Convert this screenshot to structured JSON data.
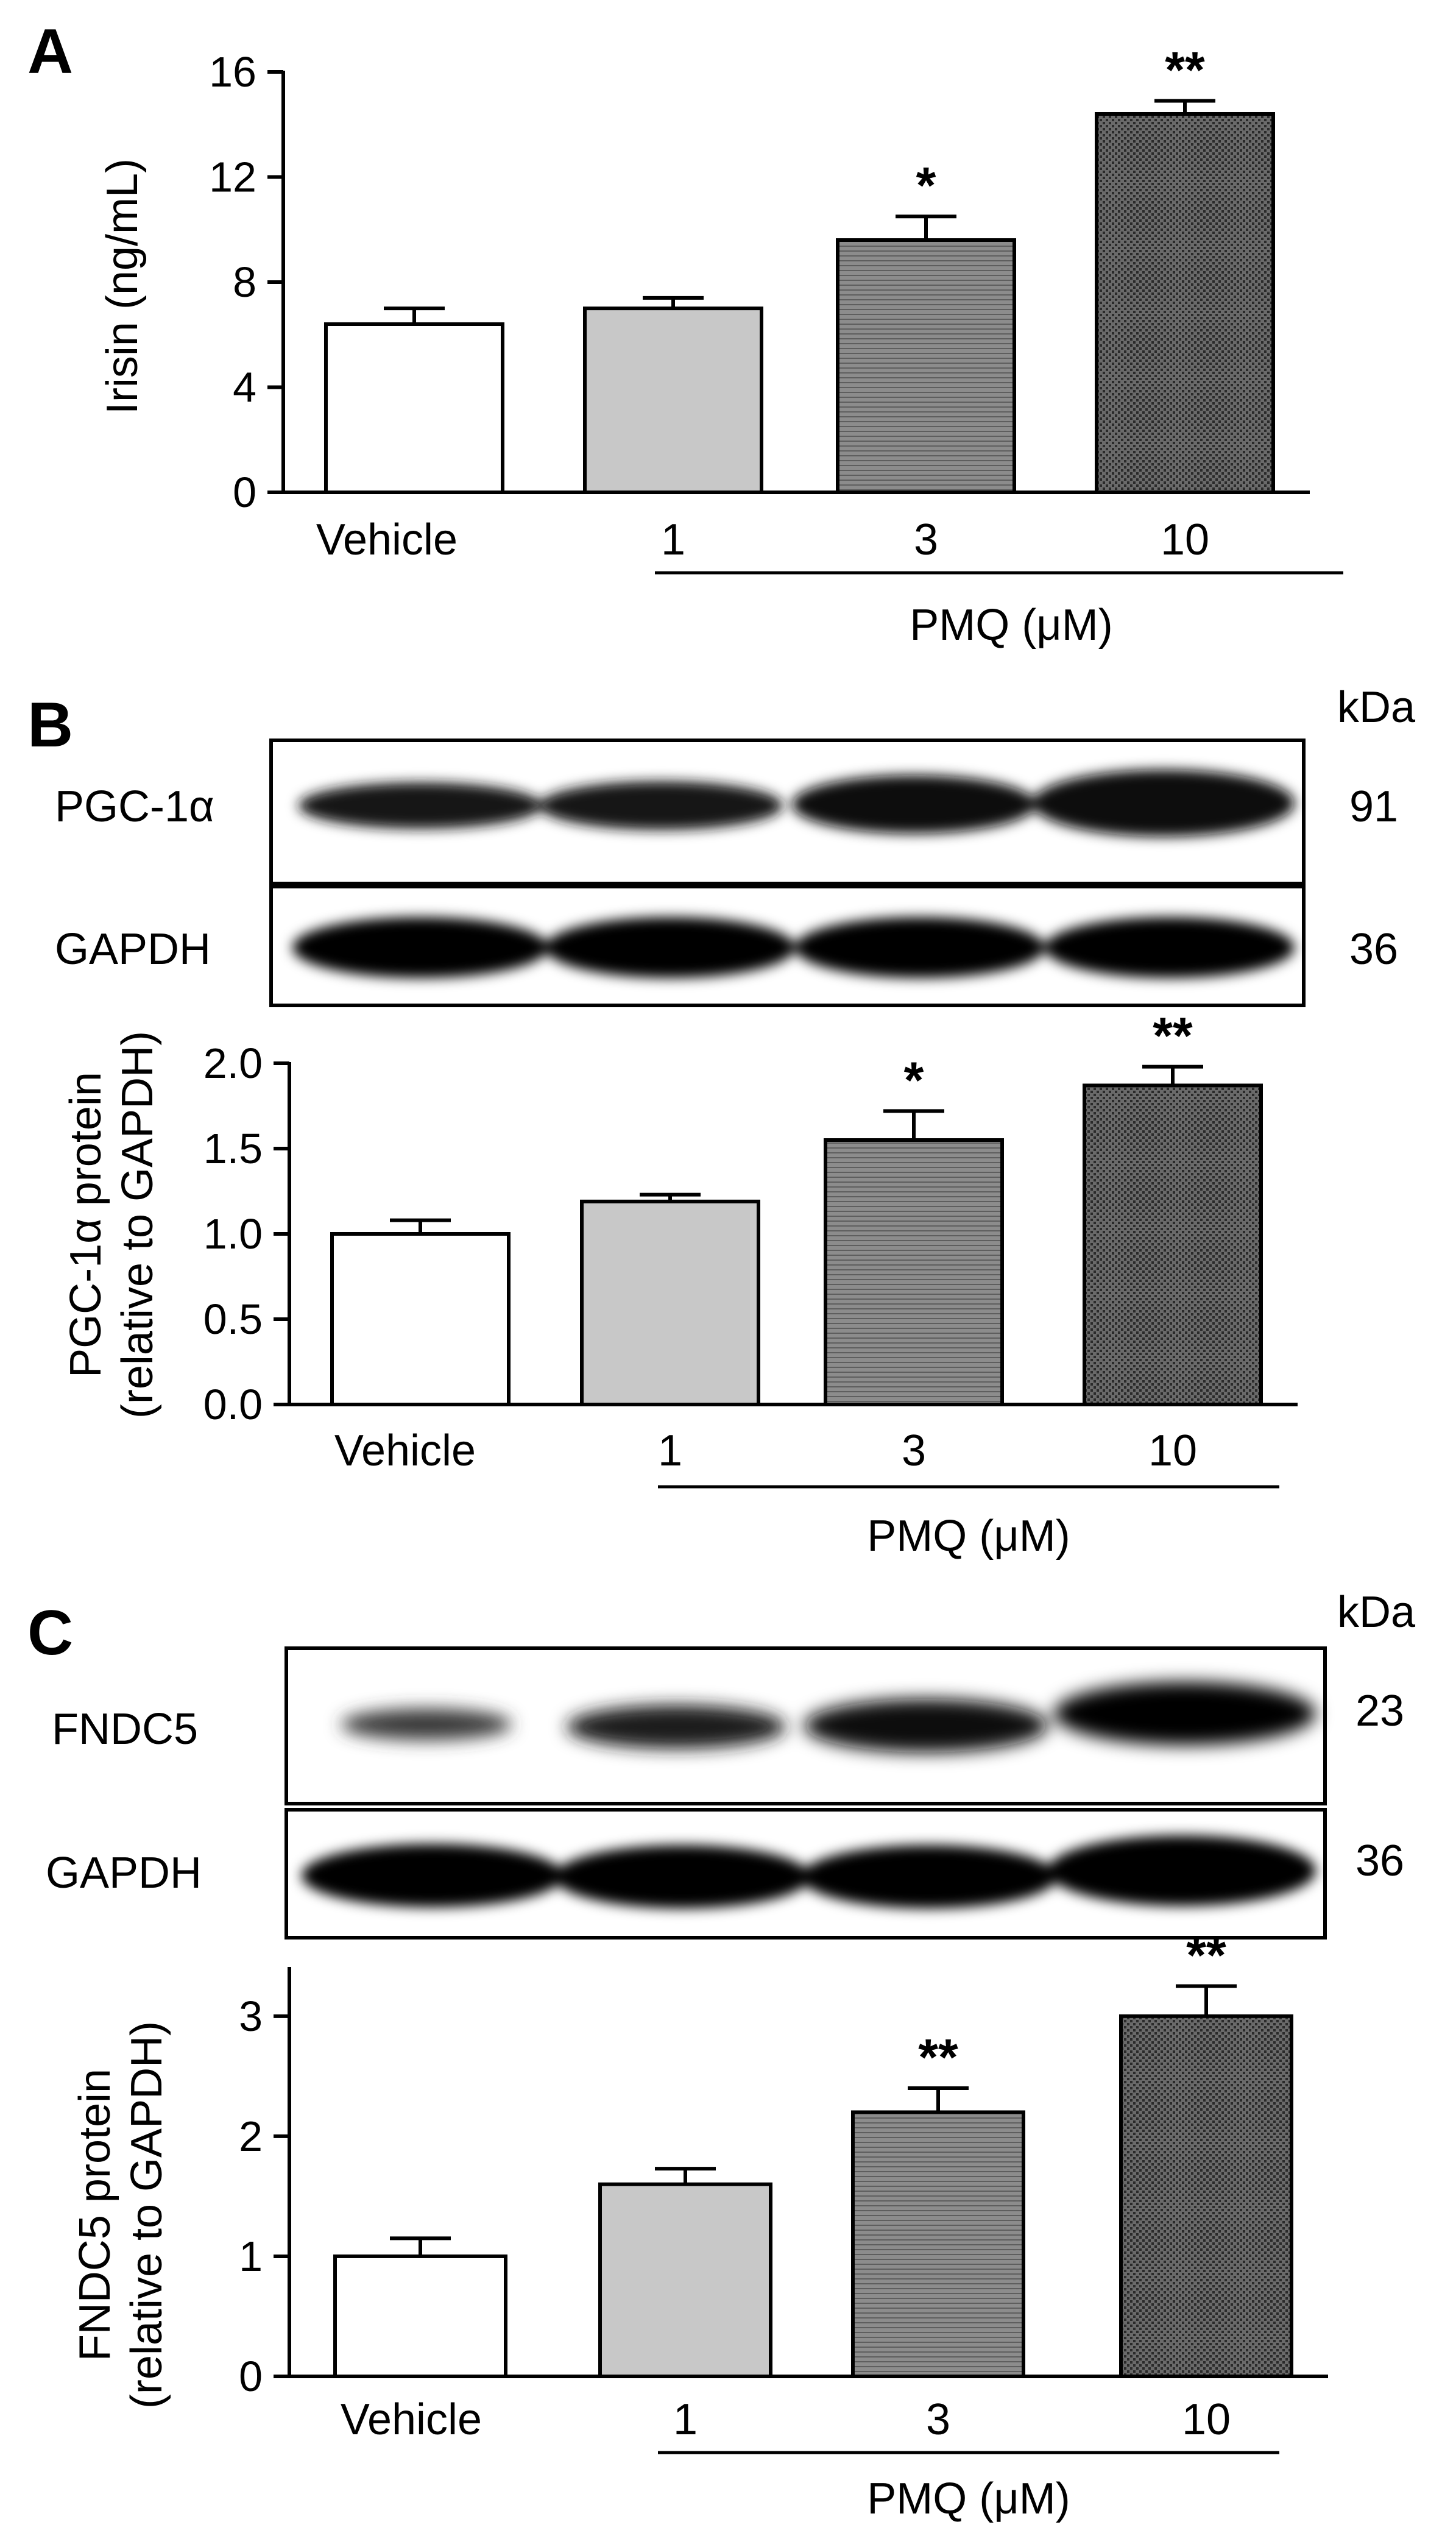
{
  "colors": {
    "vehicle_fill": "#ffffff",
    "pmq1_fill": "#c8c8c8",
    "pmq3_fill": "#8c8c8c",
    "pmq10_fill": "#5a5a5a",
    "stroke": "#000000"
  },
  "blots": {
    "B": {
      "unit_label": "kDa",
      "rows": [
        {
          "label": "PGC-1α",
          "kda": "91"
        },
        {
          "label": "GAPDH",
          "kda": "36"
        }
      ]
    },
    "C": {
      "unit_label": "kDa",
      "rows": [
        {
          "label": "FNDC5",
          "kda": "23"
        },
        {
          "label": "GAPDH",
          "kda": "36"
        }
      ]
    }
  },
  "chart_data": [
    {
      "panel": "A",
      "type": "bar",
      "categories": [
        "Vehicle",
        "1",
        "3",
        "10"
      ],
      "group_label": "PMQ (μM)",
      "values": [
        6.4,
        7.0,
        9.6,
        14.4
      ],
      "errors": [
        0.6,
        0.4,
        0.9,
        0.5
      ],
      "significance": [
        "",
        "",
        "*",
        "**"
      ],
      "ylabel": "Irisin (ng/mL)",
      "ylim": [
        0,
        16
      ],
      "yticks": [
        "0",
        "4",
        "8",
        "12",
        "16"
      ],
      "xlabel": ""
    },
    {
      "panel": "B",
      "type": "bar",
      "categories": [
        "Vehicle",
        "1",
        "3",
        "10"
      ],
      "group_label": "PMQ (μM)",
      "values": [
        1.0,
        1.19,
        1.55,
        1.87
      ],
      "errors": [
        0.08,
        0.04,
        0.17,
        0.11
      ],
      "significance": [
        "",
        "",
        "*",
        "**"
      ],
      "ylabel": "PGC-1α protein",
      "ylabel2": "(relative to GAPDH)",
      "ylim": [
        0,
        2.0
      ],
      "yticks": [
        "0.0",
        "0.5",
        "1.0",
        "1.5",
        "2.0"
      ],
      "xlabel": ""
    },
    {
      "panel": "C",
      "type": "bar",
      "categories": [
        "Vehicle",
        "1",
        "3",
        "10"
      ],
      "group_label": "PMQ (μM)",
      "values": [
        1.0,
        1.6,
        2.2,
        3.0
      ],
      "errors": [
        0.15,
        0.13,
        0.2,
        0.25
      ],
      "significance": [
        "",
        "",
        "**",
        "**"
      ],
      "ylabel": "FNDC5 protein",
      "ylabel2": "(relative to GAPDH)",
      "ylim": [
        0,
        3.4
      ],
      "yticks": [
        "0",
        "1",
        "2",
        "3"
      ],
      "xlabel": ""
    }
  ]
}
